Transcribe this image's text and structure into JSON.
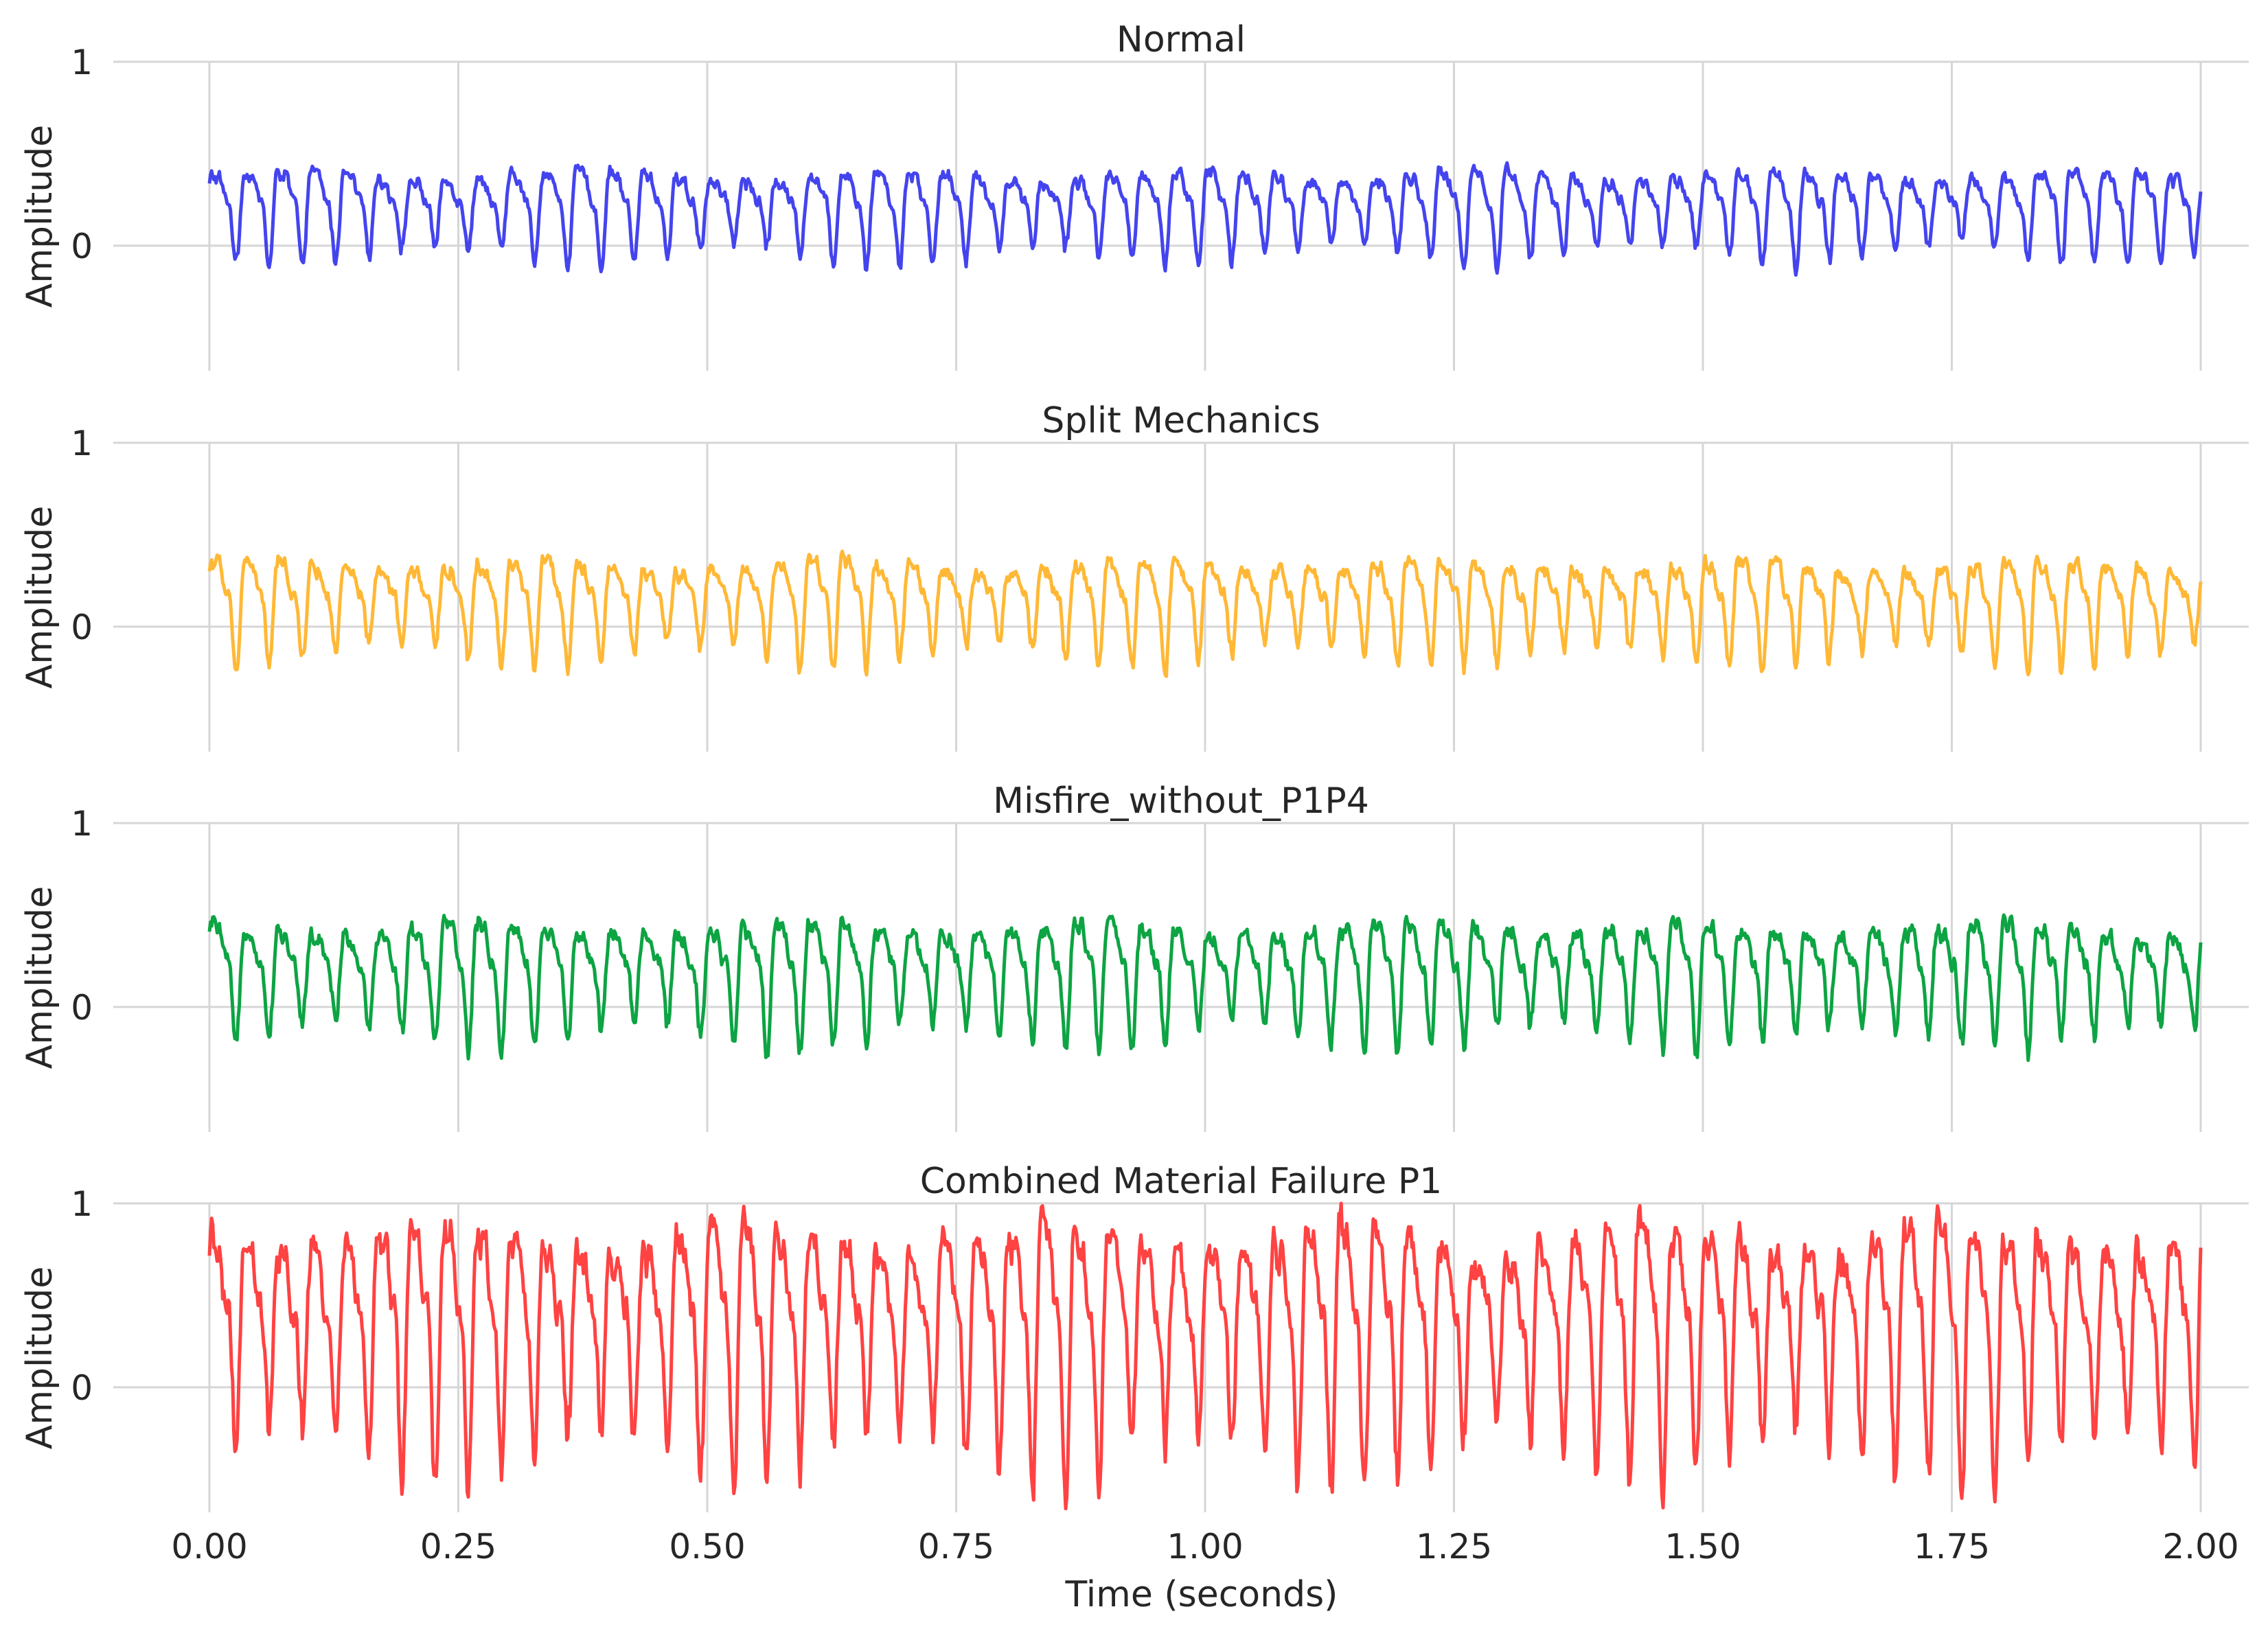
{
  "chart_data": {
    "type": "line",
    "xlabel": "Time (seconds)",
    "ylabel": "Amplitude",
    "xlim": [
      0,
      2
    ],
    "x_ticks": [
      0,
      0.25,
      0.5,
      0.75,
      1.0,
      1.25,
      1.5,
      1.75,
      2.0
    ],
    "x_tick_labels": [
      "0.00",
      "0.25",
      "0.50",
      "0.75",
      "1.00",
      "1.25",
      "1.50",
      "1.75",
      "2.00"
    ],
    "grid": true,
    "legend": "none",
    "panels": [
      {
        "title": "Normal",
        "color": "#4444ee",
        "ylim": [
          -0.68,
          1.0
        ],
        "y_ticks": [
          0,
          1
        ],
        "y_tick_labels": [
          "0",
          "1"
        ],
        "signal": {
          "cycles": 60,
          "mean": 0.14,
          "amplitude": 0.13,
          "min": -0.16,
          "max": 0.45
        }
      },
      {
        "title": "Split Mechanics",
        "color": "#ffb836",
        "ylim": [
          -0.68,
          1.0
        ],
        "y_ticks": [
          0,
          1
        ],
        "y_tick_labels": [
          "0",
          "1"
        ],
        "signal": {
          "cycles": 60,
          "mean": 0.09,
          "amplitude": 0.13,
          "min": -0.27,
          "max": 0.41
        }
      },
      {
        "title": "Misfire_without_P1P4",
        "color": "#0da443",
        "ylim": [
          -0.68,
          1.0
        ],
        "y_ticks": [
          0,
          1
        ],
        "y_tick_labels": [
          "0",
          "1"
        ],
        "signal": {
          "cycles": 60,
          "mean": 0.1,
          "amplitude": 0.17,
          "min": -0.29,
          "max": 0.5
        }
      },
      {
        "title": "Combined Material Failure P1",
        "color": "#ff4242",
        "ylim": [
          -0.68,
          1.0
        ],
        "y_ticks": [
          0,
          1
        ],
        "y_tick_labels": [
          "0",
          "1"
        ],
        "signal": {
          "cycles": 60,
          "mean": 0.18,
          "amplitude": 0.42,
          "min": -0.66,
          "max": 1.0
        }
      }
    ]
  }
}
